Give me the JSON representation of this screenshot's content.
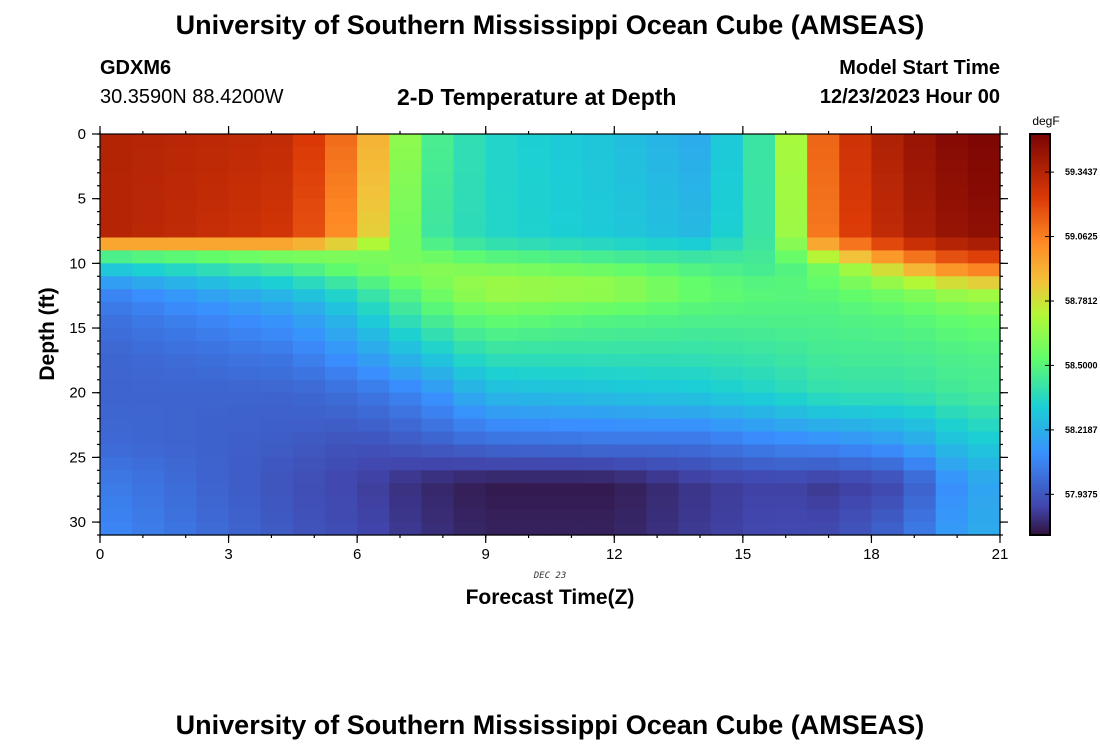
{
  "header": {
    "title": "University of Southern Mississippi Ocean Cube (AMSEAS)",
    "station_id": "GDXM6",
    "coordinates": "30.3590N  88.4200W",
    "plot_title": "2-D Temperature at Depth",
    "model_start_label": "Model Start Time",
    "model_start_value": "12/23/2023 Hour 00"
  },
  "footer": {
    "title": "University of Southern Mississippi Ocean Cube (AMSEAS)"
  },
  "chart_data": {
    "type": "heatmap",
    "title": "2-D Temperature at Depth",
    "xlabel": "Forecast Time(Z)",
    "ylabel": "Depth (ft)",
    "date_annotation": "DEC 23",
    "xlim": [
      0,
      21
    ],
    "ylim": [
      0,
      31
    ],
    "y_inverted": true,
    "x_ticks": [
      0,
      3,
      6,
      9,
      12,
      15,
      18,
      21
    ],
    "y_ticks": [
      0,
      5,
      10,
      15,
      20,
      25,
      30
    ],
    "colorbar": {
      "unit": "degF",
      "range": [
        57.76,
        59.51
      ],
      "tick_values": [
        59.3437,
        59.0625,
        58.7812,
        58.5,
        58.2187,
        57.9375
      ],
      "tick_labels": [
        "59.3437",
        "59.0625",
        "58.7812",
        "58.5000",
        "58.2187",
        "57.9375"
      ]
    },
    "grid_time_step": 0.75,
    "grid_depth_step": 1.0,
    "approx_profiles": [
      {
        "time": 0,
        "depths": [
          0,
          8,
          9,
          10.5,
          12,
          14,
          17,
          20,
          24,
          27,
          31
        ],
        "temps": [
          59.35,
          59.35,
          58.55,
          58.28,
          58.08,
          58.02,
          57.98,
          57.98,
          58.0,
          58.06,
          58.1
        ]
      },
      {
        "time": 4.5,
        "depths": [
          0,
          8,
          9,
          10.5,
          12,
          14,
          17,
          20,
          24,
          27,
          31
        ],
        "temps": [
          59.3,
          59.25,
          58.65,
          58.45,
          58.28,
          58.15,
          58.05,
          57.98,
          57.95,
          57.92,
          57.94
        ]
      },
      {
        "time": 6,
        "depths": [
          0,
          8,
          9,
          10.5,
          12,
          14,
          17,
          20,
          24,
          27,
          31
        ],
        "temps": [
          59.05,
          58.95,
          58.62,
          58.55,
          58.4,
          58.28,
          58.15,
          58.02,
          57.92,
          57.88,
          57.9
        ]
      },
      {
        "time": 7.5,
        "depths": [
          0,
          8,
          9,
          10.5,
          12,
          14,
          17,
          20,
          24,
          27,
          31
        ],
        "temps": [
          58.5,
          58.45,
          58.55,
          58.62,
          58.55,
          58.45,
          58.28,
          58.1,
          57.95,
          57.82,
          57.84
        ]
      },
      {
        "time": 9,
        "depths": [
          0,
          8,
          9,
          10.5,
          12,
          14,
          17,
          20,
          24,
          27,
          31
        ],
        "temps": [
          58.35,
          58.35,
          58.45,
          58.6,
          58.7,
          58.55,
          58.4,
          58.25,
          58.0,
          57.78,
          57.8
        ]
      },
      {
        "time": 12,
        "depths": [
          0,
          8,
          9,
          10.5,
          12,
          14,
          17,
          20,
          24,
          27,
          31
        ],
        "temps": [
          58.28,
          58.3,
          58.4,
          58.55,
          58.68,
          58.5,
          58.4,
          58.28,
          58.02,
          57.78,
          57.8
        ]
      },
      {
        "time": 14,
        "depths": [
          0,
          8,
          9,
          10.5,
          12,
          14,
          17,
          20,
          24,
          27,
          31
        ],
        "temps": [
          58.2,
          58.25,
          58.38,
          58.48,
          58.55,
          58.48,
          58.4,
          58.3,
          58.02,
          57.85,
          57.86
        ]
      },
      {
        "time": 15.75,
        "depths": [
          0,
          8,
          9,
          10.5,
          12,
          14,
          17,
          20,
          24,
          27,
          31
        ],
        "temps": [
          58.48,
          58.46,
          58.45,
          58.45,
          58.5,
          58.48,
          58.42,
          58.35,
          58.08,
          57.88,
          57.9
        ]
      },
      {
        "time": 17,
        "depths": [
          0,
          8,
          9,
          10.5,
          12,
          14,
          17,
          20,
          24,
          27,
          31
        ],
        "temps": [
          59.2,
          59.15,
          58.85,
          58.58,
          58.52,
          58.48,
          58.45,
          58.4,
          58.1,
          57.85,
          57.9
        ]
      },
      {
        "time": 18.75,
        "depths": [
          0,
          8,
          9,
          10.5,
          12,
          14,
          17,
          20,
          24,
          27,
          31
        ],
        "temps": [
          59.4,
          59.35,
          59.15,
          58.85,
          58.6,
          58.5,
          58.45,
          58.4,
          58.15,
          57.9,
          58.0
        ]
      },
      {
        "time": 20.25,
        "depths": [
          0,
          8,
          9,
          10.5,
          12,
          14,
          17,
          20,
          24,
          27,
          31
        ],
        "temps": [
          59.5,
          59.45,
          59.3,
          59.05,
          58.72,
          58.55,
          58.48,
          58.45,
          58.3,
          58.18,
          58.2
        ]
      }
    ]
  }
}
